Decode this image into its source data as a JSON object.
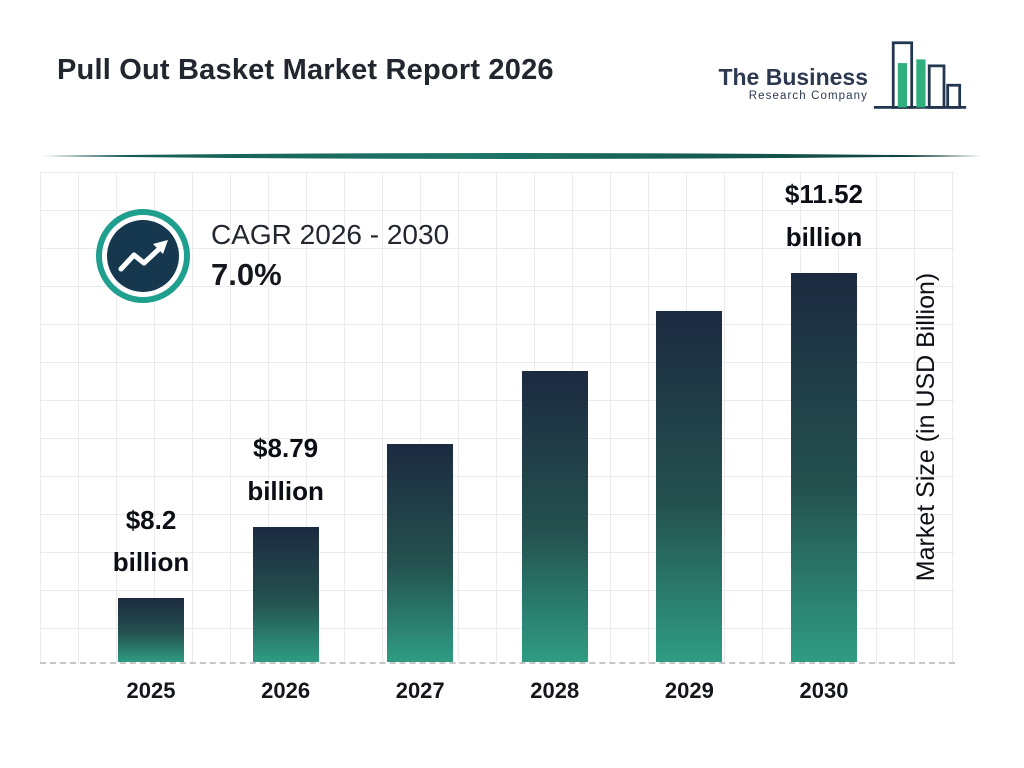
{
  "header": {
    "title": "Pull Out Basket Market Report 2026",
    "logo": {
      "line1": "The Business",
      "line2": "Research Company"
    }
  },
  "cagr": {
    "label": "CAGR 2026 - 2030",
    "value": "7.0%"
  },
  "icons": {
    "cagr": "trend-up-icon",
    "logo": "bar-chart-logo-icon"
  },
  "colors": {
    "accent_teal": "#1f9f8d",
    "navy": "#15384f",
    "logo_green": "#2fae7e",
    "divider_teal_dark": "#0d3b35",
    "divider_teal_mid": "#1e7767",
    "grid": "#ebebeb",
    "text_dark": "#14171e"
  },
  "chart_data": {
    "type": "bar",
    "title": "Pull Out Basket Market Report 2026",
    "categories": [
      "2025",
      "2026",
      "2027",
      "2028",
      "2029",
      "2030"
    ],
    "values": [
      8.2,
      8.79,
      9.41,
      10.07,
      10.77,
      11.52
    ],
    "value_labels": [
      {
        "line1": "$8.2",
        "line2": "billion"
      },
      {
        "line1": "$8.79",
        "line2": "billion"
      },
      null,
      null,
      null,
      {
        "line1": "$11.52",
        "line2": "billion"
      }
    ],
    "unit": "USD Billion",
    "xlabel": "",
    "ylabel": "Market Size (in USD Billion)",
    "cagr": "7.0%",
    "cagr_period": "2026 - 2030",
    "grid": true,
    "legend": "none",
    "layout": {
      "bar_height_pct": [
        13.0,
        27.5,
        44.5,
        59.4,
        71.6,
        79.4
      ],
      "bar_gradient_top": "#1c2a40",
      "bar_gradient_mid": "#24514f",
      "bar_gradient_bottom": "#2f9c82"
    }
  }
}
